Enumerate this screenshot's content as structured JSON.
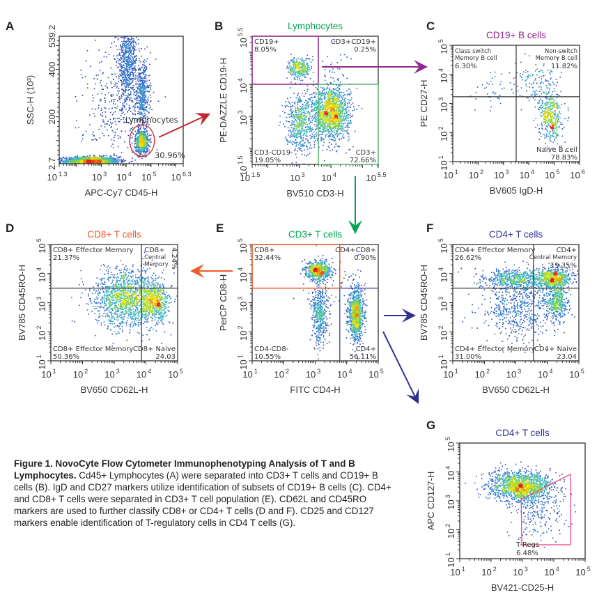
{
  "caption": {
    "title": "Figure 1. NovoCyte Flow Cytometer Immunophenotyping Analysis of T and B Lymphocytes.",
    "body": " Cd45+ Lymphocytes (A) were separated into CD3+ T cells and CD19+ B cells (B). IgD and CD27 markers utilize identification of subsets of CD19+ B cells (C). CD4+ and CD8+ T cells were separated in CD3+ T cell population (E). CD62L and CD45RO markers are used to further classify CD8+ or CD4+ T cells (D and F). CD25 and CD127 markers enable identification of T-regulatory cells in CD4 T cells (G)."
  },
  "arrows": [
    {
      "from": "A",
      "to": "B",
      "color": "#c0272d"
    },
    {
      "from": "B",
      "to": "C",
      "color": "#92278f"
    },
    {
      "from": "B",
      "to": "E",
      "color": "#00a651"
    },
    {
      "from": "E",
      "to": "D",
      "color": "#f05a28"
    },
    {
      "from": "E",
      "to": "F",
      "color": "#2e3192"
    },
    {
      "from": "E",
      "to": "G",
      "color": "#2e3192"
    }
  ],
  "chart_data": [
    {
      "panel": "A",
      "type": "scatter",
      "title": "",
      "xlabel": "APC-Cy7 CD45-H",
      "ylabel": "SSC-H (10³)",
      "xscale": "log10",
      "xlim_log10": [
        1.3,
        6.3
      ],
      "xtick_labels_log10": [
        1.3,
        3,
        4,
        5,
        6.3
      ],
      "yscale": "linear",
      "ylim": [
        2.7,
        539.2
      ],
      "ytick_labels": [
        "2.7",
        "200",
        "400",
        "539.2"
      ],
      "gate": {
        "shape": "ellipse",
        "label": "Lymphocytes",
        "percent": "30.96%",
        "color": "#d7191c",
        "center_x_log10": 4.64,
        "center_y": 100,
        "half_width_decades": 0.5,
        "half_height": 67
      },
      "populations": [
        {
          "name": "debris",
          "n": 1500,
          "center": [
            2.6,
            14
          ],
          "spread": [
            0.55,
            9
          ]
        },
        {
          "name": "lymphocytes",
          "n": 700,
          "center": [
            4.63,
            95
          ],
          "spread": [
            0.13,
            24
          ]
        },
        {
          "name": "monocytes",
          "n": 450,
          "center": [
            4.65,
            290
          ],
          "spread": [
            0.15,
            70
          ]
        },
        {
          "name": "granulocytes",
          "n": 700,
          "center": [
            4.05,
            430
          ],
          "spread": [
            0.2,
            90
          ]
        },
        {
          "name": "scatter",
          "n": 350,
          "center": [
            3.6,
            230
          ],
          "spread": [
            0.65,
            150
          ]
        }
      ]
    },
    {
      "panel": "B",
      "type": "scatter",
      "title": "Lymphocytes",
      "title_color": "#00a651",
      "xlabel": "BV510 CD3-H",
      "ylabel": "PE-DAZZLE CD19-H",
      "xscale": "log10",
      "xlim_log10": [
        1.5,
        5.5
      ],
      "xtick_labels_log10": [
        1.5,
        3,
        4,
        5.5
      ],
      "yscale": "log10",
      "ylim_log10": [
        1.5,
        5.5
      ],
      "ytick_labels_log10": [
        1.5,
        3,
        4,
        5.5
      ],
      "split_log10": [
        3.6,
        4.0
      ],
      "line_color": "#333333",
      "quadrants": [
        {
          "position": "top-left",
          "lines": [
            "CD19+"
          ],
          "percent": "8.05%",
          "outline_color": "#92278f"
        },
        {
          "position": "top-right",
          "lines": [
            "CD3+CD19+"
          ],
          "percent": "0.25%"
        },
        {
          "position": "bottom-left",
          "lines": [
            "CD3-CD19-"
          ],
          "percent": "19.05%"
        },
        {
          "position": "bottom-right",
          "lines": [
            "CD3+"
          ],
          "percent": "72.66%",
          "outline_color": "#66c27a"
        }
      ],
      "populations": [
        {
          "name": "CD3+",
          "n": 1500,
          "center": [
            4.0,
            3.1
          ],
          "spread": [
            0.3,
            0.42
          ]
        },
        {
          "name": "CD3-CD19-",
          "n": 550,
          "center": [
            3.0,
            2.8
          ],
          "spread": [
            0.22,
            0.45
          ]
        },
        {
          "name": "CD19+",
          "n": 300,
          "center": [
            3.0,
            4.5
          ],
          "spread": [
            0.18,
            0.17
          ]
        },
        {
          "name": "CD3+CD19+",
          "n": 25,
          "center": [
            4.1,
            4.5
          ],
          "spread": [
            0.35,
            0.3
          ]
        }
      ]
    },
    {
      "panel": "C",
      "type": "scatter",
      "title": "CD19+ B cells",
      "title_color": "#92278f",
      "xlabel": "BV605 IgD-H",
      "ylabel": "PE CD27-H",
      "xscale": "log10",
      "xlim_log10": [
        1,
        6
      ],
      "xtick_labels_log10": [
        1,
        2,
        3,
        4,
        5,
        6
      ],
      "yscale": "log10",
      "ylim_log10": [
        1,
        5
      ],
      "ytick_labels_log10": [
        1,
        2,
        3,
        4,
        5
      ],
      "split_log10": [
        3.5,
        3.23
      ],
      "line_color": "#333333",
      "quadrants": [
        {
          "position": "top-left",
          "lines": [
            "Class switch",
            "Memory B cell"
          ],
          "percent": "6.30%"
        },
        {
          "position": "top-right",
          "lines": [
            "Non-switch",
            "Memory B cell"
          ],
          "percent": "11.82%"
        },
        {
          "position": "bottom-right",
          "lines": [
            "Naive B cell"
          ],
          "percent": "78.83%"
        }
      ],
      "populations": [
        {
          "name": "naive",
          "n": 450,
          "center": [
            4.85,
            2.55
          ],
          "spread": [
            0.22,
            0.42
          ]
        },
        {
          "name": "non-switch memory",
          "n": 130,
          "center": [
            4.4,
            3.6
          ],
          "spread": [
            0.45,
            0.35
          ]
        },
        {
          "name": "class switch memory",
          "n": 45,
          "center": [
            2.7,
            3.5
          ],
          "spread": [
            0.5,
            0.4
          ]
        }
      ]
    },
    {
      "panel": "D",
      "type": "scatter",
      "title": "CD8+ T cells",
      "title_color": "#f05a28",
      "xlabel": "BV650 CD62L-H",
      "ylabel": "BV785 CD45RO-H",
      "xscale": "log10",
      "xlim_log10": [
        1,
        5
      ],
      "xtick_labels_log10": [
        1,
        2,
        3,
        4,
        5
      ],
      "yscale": "log10",
      "ylim_log10": [
        1,
        5
      ],
      "ytick_labels_log10": [
        1,
        2,
        3,
        4,
        5
      ],
      "split_log10": [
        3.86,
        3.5
      ],
      "line_color": "#333333",
      "quadrants": [
        {
          "position": "top-left",
          "lines": [
            "CD8+ Effector Memory"
          ],
          "percent": "21.37%"
        },
        {
          "position": "top-right",
          "lines": [
            "CD8+",
            "Central",
            "Memory"
          ],
          "percent": "4.24%",
          "percent_vertical": true
        },
        {
          "position": "bottom-left",
          "lines": [
            "CD8+ Effector Memory"
          ],
          "percent": "50.36%"
        },
        {
          "position": "bottom-right",
          "lines": [
            "CD8+ Naive"
          ],
          "percent": "24.03"
        }
      ],
      "populations": [
        {
          "name": "effector",
          "n": 1500,
          "center": [
            3.45,
            3.15
          ],
          "spread": [
            0.55,
            0.5
          ]
        },
        {
          "name": "naive",
          "n": 500,
          "center": [
            4.3,
            3.0
          ],
          "spread": [
            0.22,
            0.3
          ]
        }
      ]
    },
    {
      "panel": "E",
      "type": "scatter",
      "title": "CD3+ T cells",
      "title_color": "#00a651",
      "xlabel": "FITC CD4-H",
      "ylabel": "PerCP CD8-H",
      "xscale": "log10",
      "xlim_log10": [
        1,
        5
      ],
      "xtick_labels_log10": [
        1,
        2,
        3,
        4,
        5
      ],
      "yscale": "log10",
      "ylim_log10": [
        1,
        5
      ],
      "ytick_labels_log10": [
        1,
        2,
        3,
        4,
        5
      ],
      "split_log10": [
        3.78,
        3.5
      ],
      "line_color": "#2e3192",
      "quadrants": [
        {
          "position": "top-left",
          "lines": [
            "CD8+"
          ],
          "percent": "32.44%",
          "outline_color": "#f05a28"
        },
        {
          "position": "top-right",
          "lines": [
            "CD4+CD8+"
          ],
          "percent": "0.90%"
        },
        {
          "position": "bottom-left",
          "lines": [
            "CD4-CD8-"
          ],
          "percent": "10.55%"
        },
        {
          "position": "bottom-right",
          "lines": [
            "CD4+"
          ],
          "percent": "56.11%"
        }
      ],
      "populations": [
        {
          "name": "CD8+",
          "n": 700,
          "center": [
            3.1,
            4.1
          ],
          "spread": [
            0.18,
            0.16
          ]
        },
        {
          "name": "CD8 low tail",
          "n": 450,
          "center": [
            3.15,
            2.6
          ],
          "spread": [
            0.12,
            0.5
          ]
        },
        {
          "name": "CD4+",
          "n": 950,
          "center": [
            4.3,
            2.6
          ],
          "spread": [
            0.12,
            0.45
          ]
        },
        {
          "name": "scatter",
          "n": 80,
          "center": [
            3.5,
            3.6
          ],
          "spread": [
            0.6,
            0.5
          ]
        }
      ]
    },
    {
      "panel": "F",
      "type": "scatter",
      "title": "CD4+ T cells",
      "title_color": "#2e3192",
      "xlabel": "BV650 CD62L-H",
      "ylabel": "BV785 CD45RO-H",
      "xscale": "log10",
      "xlim_log10": [
        1,
        5
      ],
      "xtick_labels_log10": [
        1,
        2,
        3,
        4,
        5
      ],
      "yscale": "log10",
      "ylim_log10": [
        1,
        5
      ],
      "ytick_labels_log10": [
        1,
        2,
        3,
        4,
        5
      ],
      "split_log10": [
        3.56,
        3.5
      ],
      "line_color": "#333333",
      "quadrants": [
        {
          "position": "top-left",
          "lines": [
            "CD4+ Effector Memory"
          ],
          "percent": "26.62%"
        },
        {
          "position": "top-right",
          "lines": [
            "CD4+",
            "Central Memory"
          ],
          "percent": "19.35%"
        },
        {
          "position": "bottom-left",
          "lines": [
            "CD4+ Effector Memory"
          ],
          "percent": "31.00%"
        },
        {
          "position": "bottom-right",
          "lines": [
            "CD4+ Naive"
          ],
          "percent": "23.04"
        }
      ],
      "populations": [
        {
          "name": "central memory",
          "n": 700,
          "center": [
            4.2,
            3.85
          ],
          "spread": [
            0.28,
            0.17
          ]
        },
        {
          "name": "effector memory high",
          "n": 600,
          "center": [
            3.0,
            3.8
          ],
          "spread": [
            0.5,
            0.18
          ]
        },
        {
          "name": "naive",
          "n": 450,
          "center": [
            4.3,
            3.0
          ],
          "spread": [
            0.18,
            0.33
          ]
        },
        {
          "name": "effector memory low",
          "n": 600,
          "center": [
            3.1,
            2.8
          ],
          "spread": [
            0.6,
            0.55
          ]
        }
      ]
    },
    {
      "panel": "G",
      "type": "scatter",
      "title": "CD4+ T cells",
      "title_color": "#2e3192",
      "xlabel": "BV421-CD25-H",
      "ylabel": "APC CD127-H",
      "xscale": "log10",
      "xlim_log10": [
        1,
        5
      ],
      "xtick_labels_log10": [
        1,
        2,
        3,
        4,
        5
      ],
      "yscale": "log10",
      "ylim_log10": [
        1,
        5
      ],
      "ytick_labels_log10": [
        1,
        2,
        3,
        4,
        5
      ],
      "gate": {
        "shape": "polygon",
        "label": "T-Regs",
        "percent": "6.48%",
        "color": "#e8478b",
        "vertices_log10": [
          [
            2.96,
            3.05
          ],
          [
            4.53,
            3.92
          ],
          [
            4.53,
            1.48
          ],
          [
            2.98,
            1.48
          ]
        ]
      },
      "populations": [
        {
          "name": "CD4 main",
          "n": 1500,
          "center": [
            2.95,
            3.5
          ],
          "spread": [
            0.5,
            0.25
          ]
        },
        {
          "name": "T-Regs",
          "n": 220,
          "center": [
            3.5,
            2.7
          ],
          "spread": [
            0.45,
            0.5
          ]
        }
      ]
    }
  ]
}
